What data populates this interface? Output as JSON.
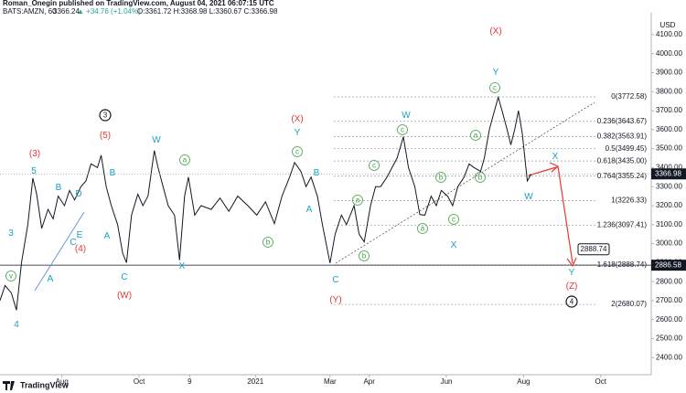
{
  "header": {
    "publisher": "Roman_Onegin published on TradingView.com, August 04, 2021 06:07:15 UTC",
    "symbol": "BATS:AMZN, 60",
    "price": "3366.24",
    "change": "▲ +34.76 (+1.04%)",
    "ohlc": "O:3361.72 H:3368.98 L:3360.67 C:3366.98"
  },
  "footer": "TradingView",
  "chart_data": {
    "type": "line",
    "color": "#131722",
    "currency": "USD",
    "x": [
      0,
      4,
      9,
      13,
      17,
      22,
      26,
      29,
      33,
      38,
      42,
      46,
      51,
      55,
      59,
      64,
      68,
      72,
      77,
      80,
      84,
      88,
      93,
      97,
      100,
      104,
      109,
      113,
      117,
      122,
      125,
      129,
      133,
      138,
      142,
      146,
      149,
      154,
      159,
      167,
      174,
      181,
      188,
      196,
      203,
      210,
      217,
      223,
      229,
      233,
      238,
      242,
      246,
      251,
      255,
      261,
      265,
      270,
      274,
      280,
      284,
      288,
      293,
      297,
      301,
      306,
      310,
      314,
      319,
      323,
      328,
      332,
      336,
      341,
      345,
      349,
      354,
      358,
      362,
      367,
      371,
      375,
      380,
      383,
      387,
      391,
      394,
      397,
      401,
      404,
      407,
      410,
      413,
      417,
      420
    ],
    "values": [
      2700,
      2780,
      2740,
      2650,
      2900,
      3100,
      3345,
      3260,
      3080,
      3180,
      3130,
      3250,
      3200,
      3280,
      3230,
      3300,
      3330,
      3420,
      3400,
      3465,
      3300,
      3200,
      3100,
      2950,
      2900,
      3150,
      3260,
      3200,
      3250,
      3490,
      3400,
      3300,
      3200,
      3150,
      2913,
      3250,
      3350,
      3150,
      3200,
      3180,
      3240,
      3170,
      3250,
      3200,
      3150,
      3220,
      3105,
      3250,
      3350,
      3427,
      3380,
      3300,
      3350,
      3250,
      3100,
      2898,
      3050,
      3150,
      3100,
      3200,
      3050,
      3009,
      3200,
      3300,
      3300,
      3350,
      3400,
      3450,
      3562,
      3400,
      3300,
      3153,
      3150,
      3250,
      3200,
      3280,
      3250,
      3200,
      3300,
      3350,
      3420,
      3400,
      3380,
      3450,
      3600,
      3700,
      3770,
      3700,
      3600,
      3520,
      3600,
      3700,
      3580,
      3330,
      3366
    ],
    "xlim": [
      0,
      515
    ],
    "ylim": [
      2310,
      4215
    ],
    "xticks": [
      {
        "value": 49,
        "label": "Aug"
      },
      {
        "value": 110,
        "label": "Oct"
      },
      {
        "value": 150,
        "label": "9"
      },
      {
        "value": 202,
        "label": "2021"
      },
      {
        "value": 261,
        "label": "Mar"
      },
      {
        "value": 292,
        "label": "Apr"
      },
      {
        "value": 353,
        "label": "Jun"
      },
      {
        "value": 414,
        "label": "Aug"
      },
      {
        "value": 475,
        "label": "Oct"
      }
    ],
    "yticks": [
      {
        "value": 2400,
        "label": "2400.00"
      },
      {
        "value": 2500,
        "label": "2500.00"
      },
      {
        "value": 2600,
        "label": "2600.00"
      },
      {
        "value": 2700,
        "label": "2700.00"
      },
      {
        "value": 2800,
        "label": "2800.00"
      },
      {
        "value": 2900,
        "label": "2900.00"
      },
      {
        "value": 3000,
        "label": "3000.00"
      },
      {
        "value": 3100,
        "label": "3100.00"
      },
      {
        "value": 3200,
        "label": "3200.00"
      },
      {
        "value": 3300,
        "label": "3300.00"
      },
      {
        "value": 3400,
        "label": "3400.00"
      },
      {
        "value": 3500,
        "label": "3500.00"
      },
      {
        "value": 3600,
        "label": "3600.00"
      },
      {
        "value": 3700,
        "label": "3700.00"
      },
      {
        "value": 3800,
        "label": "3800.00"
      },
      {
        "value": 3900,
        "label": "3900.00"
      },
      {
        "value": 4000,
        "label": "4000.00"
      },
      {
        "value": 4100,
        "label": "4100.00"
      }
    ],
    "fib_levels": [
      {
        "value": 3772.58,
        "label": "0(3772.58)"
      },
      {
        "value": 3643.67,
        "label": "0.236(3643.67)"
      },
      {
        "value": 3563.91,
        "label": "0.382(3563.91)"
      },
      {
        "value": 3499.45,
        "label": "0.5(3499.45)"
      },
      {
        "value": 3435.0,
        "label": "0.618(3435.00)"
      },
      {
        "value": 3355.24,
        "label": "0.764(3355.24)"
      },
      {
        "value": 3226.33,
        "label": "1(3226.33)"
      },
      {
        "value": 3097.41,
        "label": "1.236(3097.41)"
      },
      {
        "value": 2888.74,
        "label": "1.618(2888.74)"
      },
      {
        "value": 2680.07,
        "label": "2(2680.07)"
      }
    ],
    "last_price": 3366.98,
    "level_line": 2886.58,
    "target": 2888.74,
    "annotations": [
      {
        "text": "(3)",
        "color": "#e53935"
      },
      {
        "text": "(5)",
        "color": "#e53935"
      },
      {
        "text": "(4)",
        "color": "#e53935"
      },
      {
        "text": "(W)",
        "color": "#e53935"
      },
      {
        "text": "(X)",
        "color": "#e53935"
      },
      {
        "text": "(Y)",
        "color": "#e53935"
      },
      {
        "text": "(X)",
        "color": "#e53935"
      },
      {
        "text": "(Z)",
        "color": "#e53935"
      },
      {
        "text": "3",
        "color": "#17a2c8"
      },
      {
        "text": "4",
        "color": "#17a2c8"
      },
      {
        "text": "5",
        "color": "#17a2c8"
      },
      {
        "text": "B",
        "color": "#17a2c8"
      },
      {
        "text": "D",
        "color": "#17a2c8"
      },
      {
        "text": "E",
        "color": "#17a2c8"
      },
      {
        "text": "C",
        "color": "#17a2c8"
      },
      {
        "text": "A",
        "color": "#17a2c8"
      },
      {
        "text": "B",
        "color": "#17a2c8"
      },
      {
        "text": "A",
        "color": "#17a2c8"
      },
      {
        "text": "C",
        "color": "#17a2c8"
      },
      {
        "text": "W",
        "color": "#17a2c8"
      },
      {
        "text": "X",
        "color": "#17a2c8"
      },
      {
        "text": "Y",
        "color": "#17a2c8"
      },
      {
        "text": "B",
        "color": "#17a2c8"
      },
      {
        "text": "A",
        "color": "#17a2c8"
      },
      {
        "text": "C",
        "color": "#17a2c8"
      },
      {
        "text": "W",
        "color": "#17a2c8"
      },
      {
        "text": "X",
        "color": "#17a2c8"
      },
      {
        "text": "Y",
        "color": "#17a2c8"
      },
      {
        "text": "X",
        "color": "#17a2c8"
      },
      {
        "text": "W",
        "color": "#17a2c8"
      },
      {
        "text": "Y",
        "color": "#17a2c8"
      },
      {
        "text": "v",
        "color": "#43a047"
      },
      {
        "text": "a",
        "color": "#43a047"
      },
      {
        "text": "b",
        "color": "#43a047"
      },
      {
        "text": "c",
        "color": "#43a047"
      },
      {
        "text": "a",
        "color": "#43a047"
      },
      {
        "text": "c",
        "color": "#43a047"
      },
      {
        "text": "b",
        "color": "#43a047"
      },
      {
        "text": "c",
        "color": "#43a047"
      },
      {
        "text": "a",
        "color": "#43a047"
      },
      {
        "text": "b",
        "color": "#43a047"
      },
      {
        "text": "c",
        "color": "#43a047"
      },
      {
        "text": "a",
        "color": "#43a047"
      },
      {
        "text": "b",
        "color": "#43a047"
      },
      {
        "text": "c",
        "color": "#43a047"
      },
      {
        "text": "3",
        "color": "#131722"
      },
      {
        "text": "4",
        "color": "#131722"
      }
    ]
  }
}
